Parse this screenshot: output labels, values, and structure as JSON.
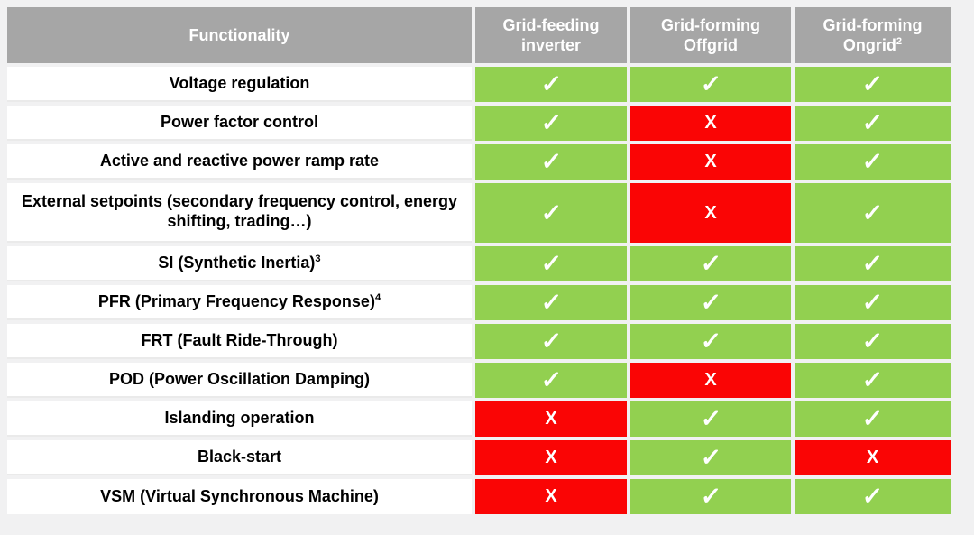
{
  "table": {
    "columns": [
      {
        "label": "Functionality",
        "sup": ""
      },
      {
        "label": "Grid-feeding inverter",
        "sup": ""
      },
      {
        "label": "Grid-forming Offgrid",
        "sup": ""
      },
      {
        "label": "Grid-forming Ongrid",
        "sup": "2"
      }
    ],
    "rows": [
      {
        "label": "Voltage regulation",
        "sup": "",
        "cells": [
          "check",
          "check",
          "check"
        ],
        "tall": false
      },
      {
        "label": "Power factor control",
        "sup": "",
        "cells": [
          "check",
          "x",
          "check"
        ],
        "tall": false
      },
      {
        "label": "Active and reactive power ramp rate",
        "sup": "",
        "cells": [
          "check",
          "x",
          "check"
        ],
        "tall": false
      },
      {
        "label": "External setpoints (secondary frequency control, energy shifting, trading…)",
        "sup": "",
        "cells": [
          "check",
          "x",
          "check"
        ],
        "tall": true
      },
      {
        "label": "SI (Synthetic Inertia)",
        "sup": "3",
        "cells": [
          "check",
          "check",
          "check"
        ],
        "tall": false
      },
      {
        "label": "PFR (Primary Frequency Response)",
        "sup": "4",
        "cells": [
          "check",
          "check",
          "check"
        ],
        "tall": false
      },
      {
        "label": "FRT (Fault Ride-Through)",
        "sup": "",
        "cells": [
          "check",
          "check",
          "check"
        ],
        "tall": false
      },
      {
        "label": "POD (Power Oscillation Damping)",
        "sup": "",
        "cells": [
          "check",
          "x",
          "check"
        ],
        "tall": false
      },
      {
        "label": "Islanding operation",
        "sup": "",
        "cells": [
          "x",
          "check",
          "check"
        ],
        "tall": false
      },
      {
        "label": "Black-start",
        "sup": "",
        "cells": [
          "x",
          "check",
          "x"
        ],
        "tall": false
      },
      {
        "label": "VSM (Virtual Synchronous Machine)",
        "sup": "",
        "cells": [
          "x",
          "check",
          "check"
        ],
        "tall": false
      }
    ],
    "marks": {
      "check": "✓",
      "x": "X"
    },
    "colors": {
      "page_bg": "#F1F1F2",
      "header_bg": "#A6A6A6",
      "header_text": "#FFFFFF",
      "supported_bg": "#92D050",
      "not_supported_bg": "#FA0505",
      "label_bg": "#FFFFFF",
      "label_text": "#000000",
      "mark_color": "#FFFFFF"
    }
  }
}
